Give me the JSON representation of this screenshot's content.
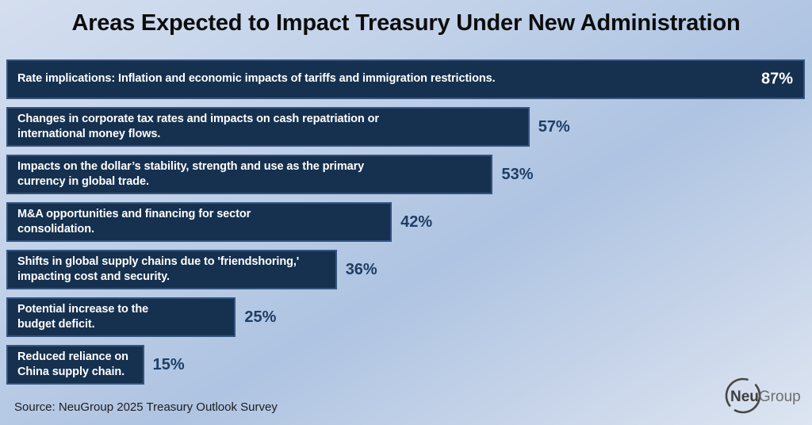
{
  "title": "Areas Expected to Impact Treasury Under New Administration",
  "source": "Source: NeuGroup 2025 Treasury Outlook Survey",
  "logo": {
    "bold_part": "Neu",
    "light_part": "Group"
  },
  "colors": {
    "bar_fill": "#16304f",
    "bar_border": "#35547e",
    "pct_inside": "#ffffff",
    "pct_outside": "#1d3e66",
    "title_color": "#0d0d0d",
    "background_top": "#d4deef",
    "background_mid": "#aec4e2",
    "background_bottom": "#dde5f1",
    "logo_gray": "#474747"
  },
  "chart_data": {
    "type": "bar",
    "orientation": "horizontal",
    "title": "Areas Expected to Impact Treasury Under New Administration",
    "categories": [
      "Rate implications: Inflation and economic impacts of tariffs and immigration restrictions.",
      "Changes in corporate tax rates and impacts on cash repatriation or\ninternational money flows.",
      "Impacts on the dollar’s stability, strength and use as the primary\ncurrency in global trade.",
      "M&A opportunities and financing for sector\nconsolidation.",
      "Shifts in global supply chains due to 'friendshoring,'\nimpacting cost and security.",
      "Potential increase to the\nbudget deficit.",
      "Reduced reliance on\nChina supply chain."
    ],
    "values": [
      87,
      57,
      53,
      42,
      36,
      25,
      15
    ],
    "value_labels": [
      "87%",
      "57%",
      "53%",
      "42%",
      "36%",
      "25%",
      "15%"
    ],
    "scale_max": 87,
    "xlabel": "",
    "ylabel": "",
    "grid": false,
    "legend": false,
    "source": "Source: NeuGroup 2025 Treasury Outlook Survey"
  }
}
